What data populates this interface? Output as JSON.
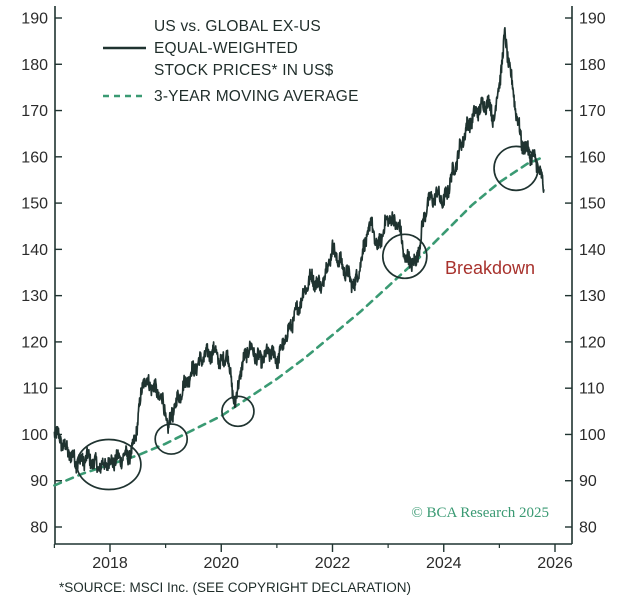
{
  "chart_data": {
    "type": "line",
    "legend": {
      "series_label_lines": [
        "US vs. GLOBAL EX-US",
        "EQUAL-WEIGHTED",
        "STOCK PRICES* IN US$"
      ],
      "moving_avg_label": "3-YEAR MOVING AVERAGE"
    },
    "x_ticks": [
      "2018",
      "2020",
      "2022",
      "2024",
      "2026"
    ],
    "y_ticks": [
      "80",
      "90",
      "100",
      "110",
      "120",
      "130",
      "140",
      "150",
      "160",
      "170",
      "180",
      "190"
    ],
    "xlim": [
      2017.0,
      2026.2
    ],
    "ylim": [
      80,
      190
    ],
    "annotation": "Breakdown",
    "credit": "© BCA Research 2025",
    "footnote": "*SOURCE: MSCI Inc. (SEE COPYRIGHT DECLARATION)",
    "colors": {
      "series": "#1f3330",
      "moving_avg": "#3a9a73",
      "annotation": "#a8322d",
      "axis": "#1f3330"
    },
    "series": [
      {
        "name": "US vs. Global ex-US equal-weighted stock prices",
        "style": "solid",
        "x": [
          2017.0,
          2017.2,
          2017.4,
          2017.6,
          2017.8,
          2018.0,
          2018.2,
          2018.4,
          2018.5,
          2018.6,
          2018.8,
          2018.95,
          2019.05,
          2019.1,
          2019.3,
          2019.5,
          2019.7,
          2019.9,
          2020.0,
          2020.1,
          2020.25,
          2020.35,
          2020.5,
          2020.7,
          2020.9,
          2021.0,
          2021.2,
          2021.4,
          2021.6,
          2021.8,
          2022.0,
          2022.2,
          2022.4,
          2022.6,
          2022.7,
          2022.8,
          2023.0,
          2023.2,
          2023.3,
          2023.5,
          2023.7,
          2023.9,
          2024.0,
          2024.2,
          2024.4,
          2024.6,
          2024.8,
          2024.9,
          2025.0,
          2025.1,
          2025.2,
          2025.3,
          2025.4,
          2025.6,
          2025.7,
          2025.8
        ],
        "values": [
          101,
          97,
          94,
          95,
          93,
          94,
          95,
          96,
          103,
          112,
          110,
          107,
          101,
          104,
          110,
          114,
          117,
          118,
          115,
          118,
          106,
          114,
          119,
          116,
          118,
          116,
          122,
          128,
          134,
          132,
          140,
          136,
          132,
          142,
          146,
          140,
          147,
          145,
          138,
          137,
          150,
          152,
          150,
          158,
          166,
          170,
          172,
          168,
          176,
          186,
          178,
          170,
          163,
          160,
          158,
          153
        ]
      },
      {
        "name": "3-year moving average",
        "style": "dashed",
        "x": [
          2017.0,
          2017.5,
          2018.0,
          2018.5,
          2019.0,
          2019.5,
          2020.0,
          2020.5,
          2021.0,
          2021.5,
          2022.0,
          2022.5,
          2023.0,
          2023.5,
          2024.0,
          2024.5,
          2025.0,
          2025.5,
          2025.8
        ],
        "values": [
          89,
          91.5,
          93.5,
          95.5,
          98,
          101,
          104,
          108,
          112,
          116.5,
          121.5,
          126.5,
          132,
          137.5,
          143.5,
          149.5,
          154.5,
          158.5,
          160
        ]
      }
    ],
    "highlight_circles": [
      {
        "x": 2017.98,
        "y": 93.5
      },
      {
        "x": 2019.1,
        "y": 99
      },
      {
        "x": 2020.3,
        "y": 105
      },
      {
        "x": 2023.3,
        "y": 138.5
      },
      {
        "x": 2025.3,
        "y": 157.5
      }
    ]
  }
}
